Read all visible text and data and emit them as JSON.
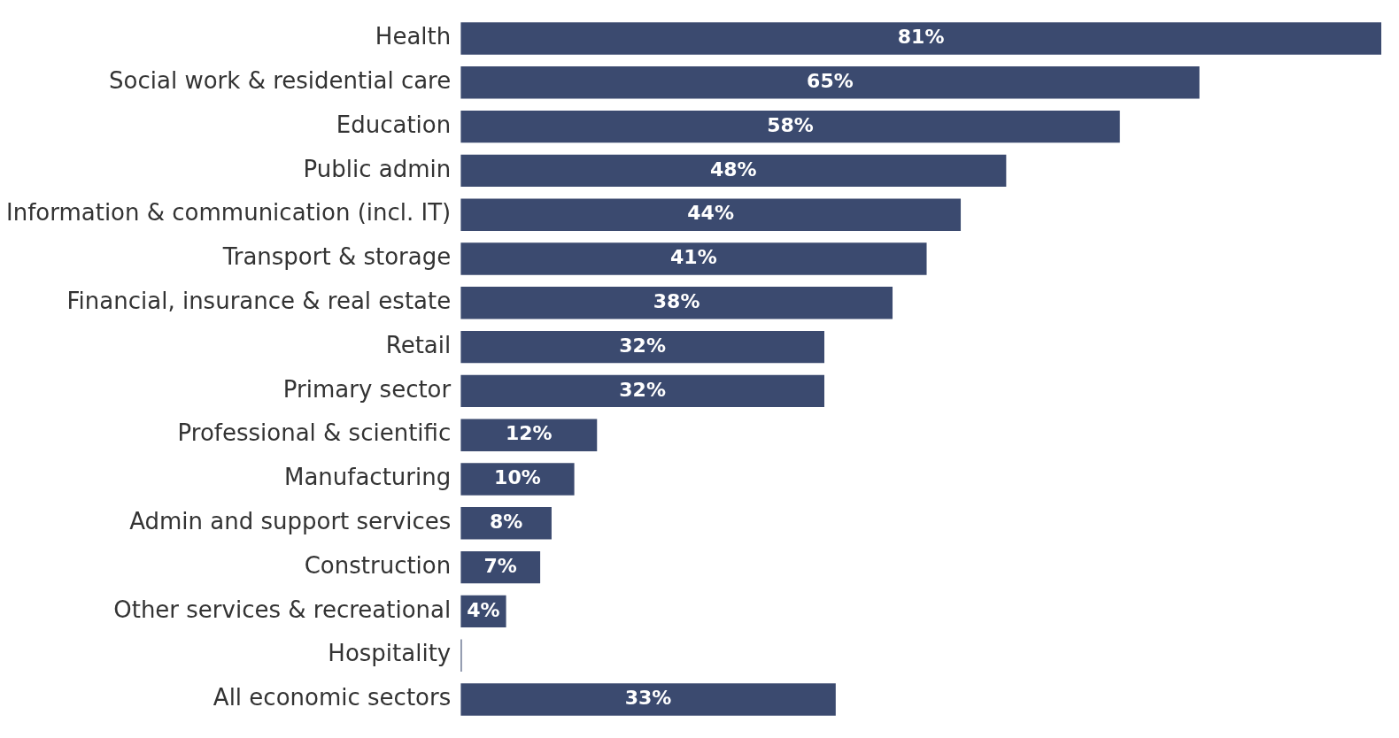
{
  "chart_data": {
    "type": "bar",
    "orientation": "horizontal",
    "categories": [
      "Health",
      "Social work & residential care",
      "Education",
      "Public admin",
      "Information & communication (incl. IT)",
      "Transport & storage",
      "Financial, insurance & real estate",
      "Retail",
      "Primary sector",
      "Professional & scientific",
      "Manufacturing",
      "Admin and support services",
      "Construction",
      "Other services & recreational",
      "Hospitality",
      "All economic sectors"
    ],
    "values": [
      81,
      65,
      58,
      48,
      44,
      41,
      38,
      32,
      32,
      12,
      10,
      8,
      7,
      4,
      0.1,
      33
    ],
    "value_labels": [
      "81%",
      "65%",
      "58%",
      "48%",
      "44%",
      "41%",
      "38%",
      "32%",
      "32%",
      "12%",
      "10%",
      "8%",
      "7%",
      "4%",
      null,
      "33%"
    ],
    "color": "#3b4a6f",
    "legend": false
  }
}
